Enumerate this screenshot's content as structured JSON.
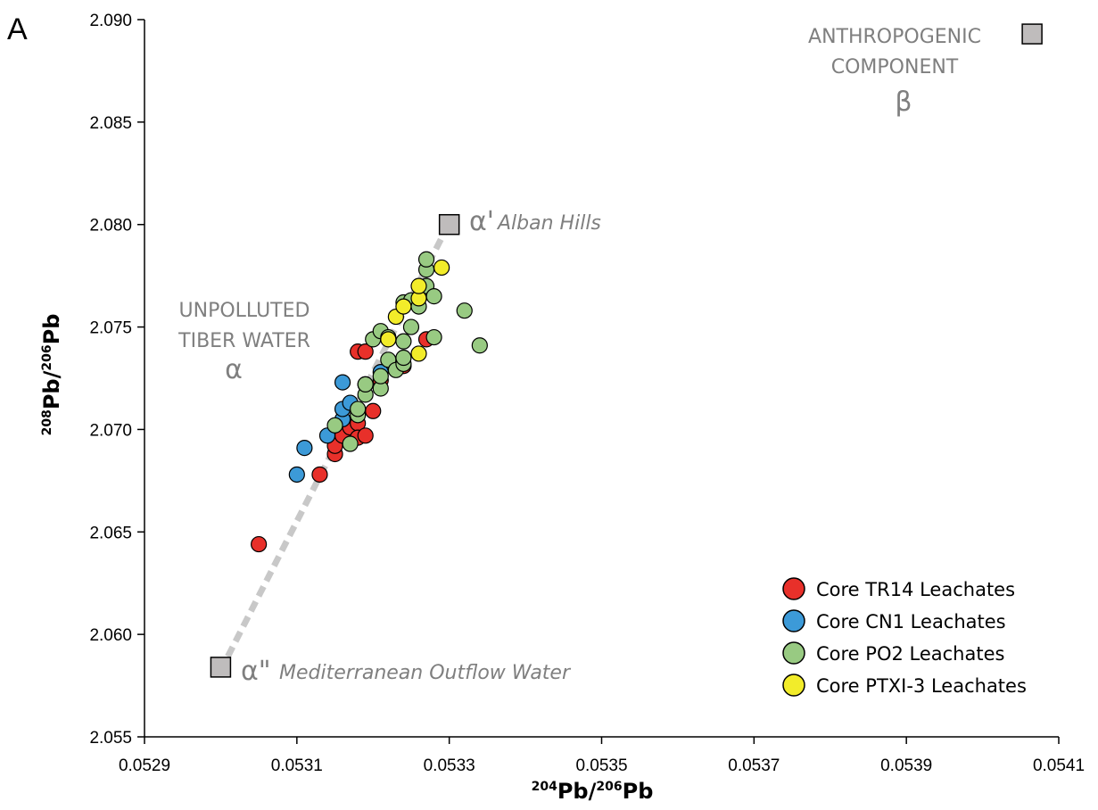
{
  "panel_label": "A",
  "colors": {
    "tr14": "#e8302a",
    "cn1": "#3c9ad8",
    "po2": "#98ca82",
    "ptxi3": "#f2ec2a",
    "endmember_fill": "#bfbcbc",
    "annotation": "#7f7f7f",
    "trend_line": "#c8c8c8"
  },
  "axes": {
    "x_label_sup1": "204",
    "x_label_base1": "Pb/",
    "x_label_sup2": "206",
    "x_label_base2": "Pb",
    "y_label_sup1": "208",
    "y_label_base1": "Pb/",
    "y_label_sup2": "206",
    "y_label_base2": "Pb"
  },
  "annotations": {
    "anthropogenic_line1": "ANTHROPOGENIC",
    "anthropogenic_line2": "COMPONENT",
    "anthropogenic_symbol": "β",
    "unpolluted_line1": "UNPOLLUTED",
    "unpolluted_line2": "TIBER WATER",
    "unpolluted_symbol": "α",
    "alban_symbol": "α'",
    "alban_name": "Alban Hills",
    "med_symbol": "α\"",
    "med_name": "Mediterranean Outflow Water"
  },
  "chart_data": {
    "type": "scatter",
    "title": "",
    "xlabel": "204Pb/206Pb",
    "ylabel": "208Pb/206Pb",
    "xlim": [
      0.0529,
      0.0541
    ],
    "ylim": [
      2.055,
      2.09
    ],
    "x_ticks": [
      "0.0529",
      "0.0531",
      "0.0533",
      "0.0535",
      "0.0537",
      "0.0539",
      "0.0541"
    ],
    "y_ticks": [
      "2.055",
      "2.060",
      "2.065",
      "2.070",
      "2.075",
      "2.080",
      "2.085",
      "2.090"
    ],
    "legend_position": "bottom-right",
    "endmembers": [
      {
        "id": "beta",
        "x": 0.054065,
        "y": 2.0893
      },
      {
        "id": "alpha_prime",
        "x": 0.0533,
        "y": 2.08
      },
      {
        "id": "alpha_double_prime",
        "x": 0.053,
        "y": 2.0584
      }
    ],
    "trend_line": {
      "x": [
        0.053,
        0.0533
      ],
      "y": [
        2.0584,
        2.08
      ],
      "style": "dashed"
    },
    "series": [
      {
        "name": "Core TR14 Leachates",
        "color": "#e8302a",
        "points": [
          [
            0.05305,
            2.0644
          ],
          [
            0.05313,
            2.0678
          ],
          [
            0.05315,
            2.0688
          ],
          [
            0.05315,
            2.0692
          ],
          [
            0.05316,
            2.0697
          ],
          [
            0.05317,
            2.0701
          ],
          [
            0.05318,
            2.0703
          ],
          [
            0.05318,
            2.0696
          ],
          [
            0.05319,
            2.0697
          ],
          [
            0.0532,
            2.0709
          ],
          [
            0.05318,
            2.0738
          ],
          [
            0.05319,
            2.0738
          ],
          [
            0.05321,
            2.0724
          ],
          [
            0.05324,
            2.0731
          ],
          [
            0.05327,
            2.0744
          ]
        ]
      },
      {
        "name": "Core CN1 Leachates",
        "color": "#3c9ad8",
        "points": [
          [
            0.0531,
            2.0678
          ],
          [
            0.05311,
            2.0691
          ],
          [
            0.05314,
            2.0697
          ],
          [
            0.05316,
            2.0705
          ],
          [
            0.05316,
            2.071
          ],
          [
            0.05317,
            2.0713
          ],
          [
            0.05316,
            2.0723
          ],
          [
            0.05319,
            2.0722
          ],
          [
            0.05321,
            2.0728
          ]
        ]
      },
      {
        "name": "Core PO2 Leachates",
        "color": "#98ca82",
        "points": [
          [
            0.05315,
            2.0702
          ],
          [
            0.05317,
            2.0693
          ],
          [
            0.05318,
            2.0707
          ],
          [
            0.05318,
            2.071
          ],
          [
            0.05319,
            2.0717
          ],
          [
            0.05319,
            2.0722
          ],
          [
            0.0532,
            2.0744
          ],
          [
            0.05321,
            2.072
          ],
          [
            0.05321,
            2.0726
          ],
          [
            0.05322,
            2.0734
          ],
          [
            0.05321,
            2.0748
          ],
          [
            0.05322,
            2.0745
          ],
          [
            0.05323,
            2.0729
          ],
          [
            0.05324,
            2.0732
          ],
          [
            0.05324,
            2.0735
          ],
          [
            0.05324,
            2.0743
          ],
          [
            0.05325,
            2.075
          ],
          [
            0.05324,
            2.0762
          ],
          [
            0.05325,
            2.0763
          ],
          [
            0.05326,
            2.076
          ],
          [
            0.05327,
            2.0767
          ],
          [
            0.05327,
            2.077
          ],
          [
            0.05327,
            2.0778
          ],
          [
            0.05327,
            2.0783
          ],
          [
            0.05328,
            2.0765
          ],
          [
            0.05328,
            2.0745
          ],
          [
            0.05332,
            2.0758
          ],
          [
            0.05334,
            2.0741
          ]
        ]
      },
      {
        "name": "Core PTXI-3 Leachates",
        "color": "#f2ec2a",
        "points": [
          [
            0.05322,
            2.0744
          ],
          [
            0.05323,
            2.0755
          ],
          [
            0.05324,
            2.076
          ],
          [
            0.05326,
            2.0764
          ],
          [
            0.05326,
            2.077
          ],
          [
            0.05326,
            2.0737
          ],
          [
            0.05329,
            2.0779
          ]
        ]
      }
    ]
  }
}
